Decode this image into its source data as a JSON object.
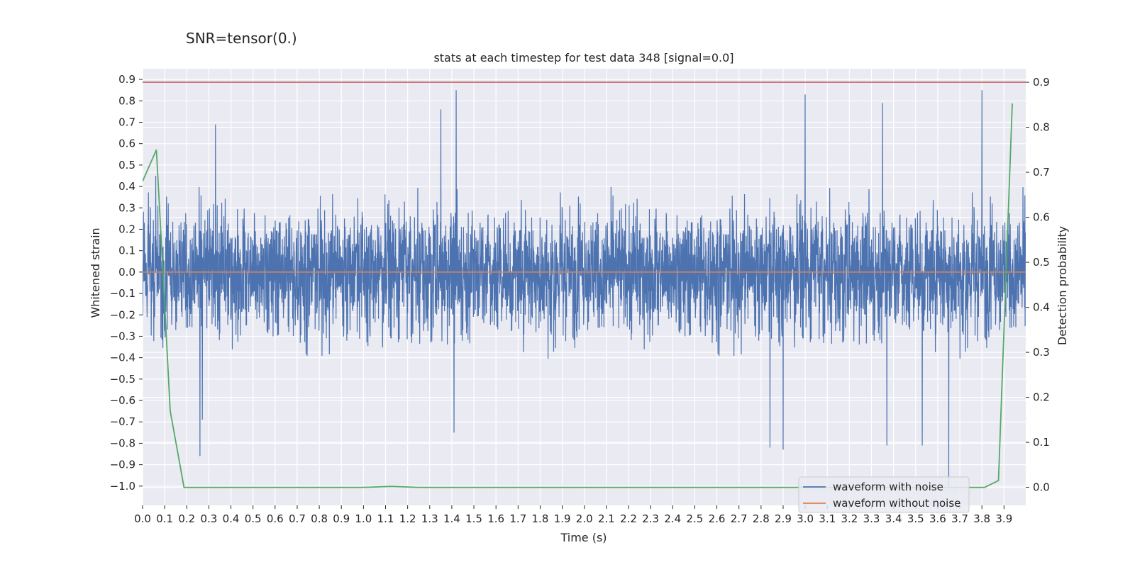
{
  "suptitle": "SNR=tensor(0.)",
  "colors": {
    "background": "#eaeaf2",
    "grid": "#ffffff",
    "noisy": "#4c72b0",
    "clean": "#dd8452",
    "probability": "#55a868",
    "threshold": "#c44e52"
  },
  "chart_data": {
    "type": "line",
    "title": "stats at each timestep for test data 348 [signal=0.0]",
    "xlabel": "Time (s)",
    "ylabel": "Whitened strain",
    "y2label": "Detection probability",
    "xlim": [
      0.0,
      3.9985
    ],
    "ylim": [
      -1.09,
      0.95
    ],
    "y2lim": [
      -0.04,
      0.93
    ],
    "x_ticks": [
      "0.0",
      "0.1",
      "0.2",
      "0.3",
      "0.4",
      "0.5",
      "0.6",
      "0.7",
      "0.8",
      "0.9",
      "1.0",
      "1.1",
      "1.2",
      "1.3",
      "1.4",
      "1.5",
      "1.6",
      "1.7",
      "1.8",
      "1.9",
      "2.0",
      "2.1",
      "2.2",
      "2.3",
      "2.4",
      "2.5",
      "2.6",
      "2.7",
      "2.8",
      "2.9",
      "3.0",
      "3.1",
      "3.2",
      "3.3",
      "3.4",
      "3.5",
      "3.6",
      "3.7",
      "3.8",
      "3.9"
    ],
    "y_ticks": [
      "0.9",
      "0.8",
      "0.7",
      "0.6",
      "0.5",
      "0.4",
      "0.3",
      "0.2",
      "0.1",
      "0.0",
      "−0.1",
      "−0.2",
      "−0.3",
      "−0.4",
      "−0.5",
      "−0.6",
      "−0.7",
      "−0.8",
      "−0.9",
      "−1.0"
    ],
    "y2_ticks": [
      "0.9",
      "0.8",
      "0.7",
      "0.6",
      "0.5",
      "0.4",
      "0.3",
      "0.2",
      "0.1",
      "0.0"
    ],
    "grid": true,
    "legend_position": "lower-right",
    "series": [
      {
        "name": "waveform with noise",
        "axis": "left",
        "color": "#4c72b0",
        "n_points": 4096,
        "range": [
          -1.0,
          0.85
        ],
        "peaks": [
          {
            "x": 0.26,
            "y": -0.86
          },
          {
            "x": 0.33,
            "y": 0.69
          },
          {
            "x": 1.42,
            "y": 0.85
          },
          {
            "x": 1.35,
            "y": 0.76
          },
          {
            "x": 1.41,
            "y": -0.75
          },
          {
            "x": 3.0,
            "y": 0.83
          },
          {
            "x": 3.35,
            "y": 0.79
          },
          {
            "x": 3.8,
            "y": 0.85
          },
          {
            "x": 3.65,
            "y": -1.0
          },
          {
            "x": 2.84,
            "y": -0.82
          },
          {
            "x": 2.9,
            "y": -0.83
          },
          {
            "x": 3.37,
            "y": -0.81
          },
          {
            "x": 3.53,
            "y": -0.81
          },
          {
            "x": 0.06,
            "y": 0.45
          },
          {
            "x": 0.27,
            "y": -0.69
          }
        ]
      },
      {
        "name": "waveform without noise",
        "axis": "left",
        "color": "#dd8452",
        "x": [
          0.0,
          3.9985
        ],
        "y": [
          0.0,
          0.0
        ]
      },
      {
        "name": "",
        "axis": "right",
        "color": "#55a868",
        "x": [
          0.0,
          0.0625,
          0.09,
          0.125,
          0.1875,
          0.25,
          0.5,
          0.75,
          1.0,
          1.125,
          1.25,
          1.5,
          2.0,
          2.5,
          3.0,
          3.5,
          3.75,
          3.8125,
          3.875,
          3.9375
        ],
        "y": [
          0.68,
          0.75,
          0.5,
          0.17,
          0.0,
          0.0,
          0.0,
          0.0,
          0.0,
          0.002,
          0.0,
          0.0,
          0.0,
          0.0,
          0.0,
          0.0,
          0.0,
          0.0,
          0.015,
          0.853
        ]
      },
      {
        "name": "",
        "axis": "right",
        "color": "#c44e52",
        "x": [
          0.0,
          3.9985
        ],
        "y": [
          0.9,
          0.9
        ]
      }
    ]
  }
}
